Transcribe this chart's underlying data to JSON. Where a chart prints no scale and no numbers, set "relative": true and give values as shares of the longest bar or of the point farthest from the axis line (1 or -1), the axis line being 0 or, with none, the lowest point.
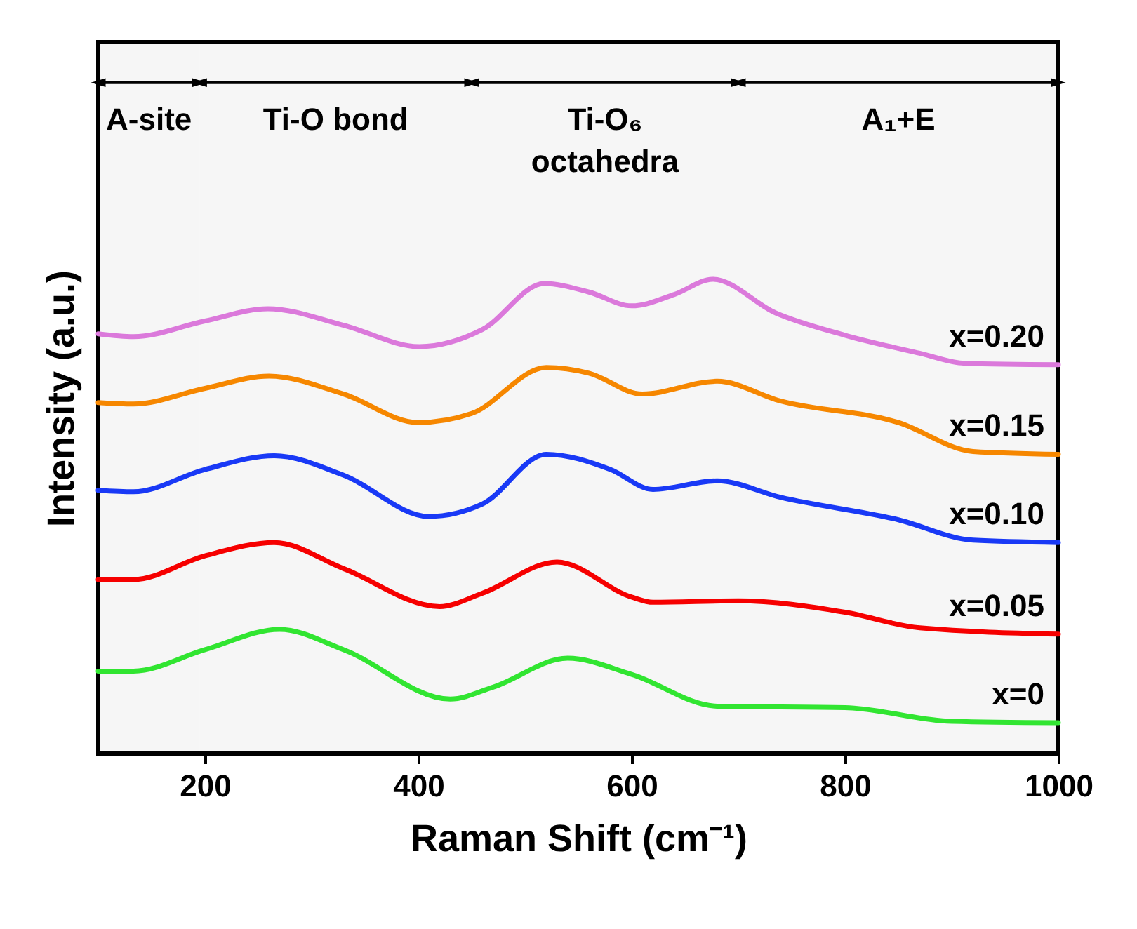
{
  "chart_data": {
    "type": "line",
    "relative": true,
    "xlabel": "Raman Shift (cm⁻¹)",
    "ylabel": "Intensity (a.u.)",
    "xlim": [
      100,
      1000
    ],
    "xticks": [
      200,
      400,
      600,
      800,
      1000
    ],
    "grid": false,
    "legend": false,
    "tick_labels": "x",
    "bands": [
      {
        "axis": "x",
        "from": 100,
        "to": 195,
        "label": "A-site"
      },
      {
        "axis": "x",
        "from": 195,
        "to": 450,
        "label": "Ti-O bond"
      },
      {
        "axis": "x",
        "from": 450,
        "to": 700,
        "label": "Ti-O₆\noctahedra"
      },
      {
        "axis": "x",
        "from": 700,
        "to": 1000,
        "label": "A₁+E"
      }
    ],
    "series": [
      {
        "name": "x=0.20",
        "color": "#e47ee4",
        "x": [
          100,
          133,
          200,
          259,
          330,
          401,
          460,
          518,
          560,
          600,
          640,
          676,
          735,
          800,
          870,
          912,
          1000
        ],
        "values": [
          0.885,
          0.879,
          0.912,
          0.938,
          0.903,
          0.858,
          0.894,
          0.991,
          0.973,
          0.944,
          0.968,
          1.0,
          0.929,
          0.882,
          0.844,
          0.823,
          0.82
        ]
      },
      {
        "name": "x=0.15",
        "color": "#ff8c00",
        "x": [
          100,
          133,
          200,
          260,
          330,
          400,
          450,
          520,
          560,
          610,
          680,
          740,
          850,
          920,
          1000
        ],
        "values": [
          0.74,
          0.737,
          0.77,
          0.796,
          0.758,
          0.698,
          0.717,
          0.814,
          0.802,
          0.758,
          0.785,
          0.743,
          0.698,
          0.637,
          0.631
        ]
      },
      {
        "name": "x=0.10",
        "color": "#1a3cff",
        "x": [
          100,
          133,
          200,
          265,
          330,
          410,
          460,
          520,
          580,
          620,
          680,
          740,
          850,
          920,
          1000
        ],
        "values": [
          0.555,
          0.552,
          0.599,
          0.628,
          0.587,
          0.5,
          0.526,
          0.631,
          0.599,
          0.557,
          0.575,
          0.54,
          0.493,
          0.45,
          0.445
        ]
      },
      {
        "name": "x=0.05",
        "color": "#ff0000",
        "x": [
          100,
          133,
          200,
          265,
          330,
          420,
          460,
          530,
          600,
          620,
          700,
          800,
          870,
          1000
        ],
        "values": [
          0.367,
          0.367,
          0.417,
          0.445,
          0.39,
          0.31,
          0.338,
          0.404,
          0.33,
          0.319,
          0.322,
          0.298,
          0.265,
          0.252
        ]
      },
      {
        "name": "x=0",
        "color": "#33ee33",
        "x": [
          100,
          133,
          200,
          270,
          330,
          430,
          470,
          540,
          600,
          680,
          800,
          900,
          1000
        ],
        "values": [
          0.174,
          0.174,
          0.219,
          0.262,
          0.219,
          0.115,
          0.14,
          0.201,
          0.167,
          0.1,
          0.097,
          0.068,
          0.065
        ]
      }
    ]
  }
}
